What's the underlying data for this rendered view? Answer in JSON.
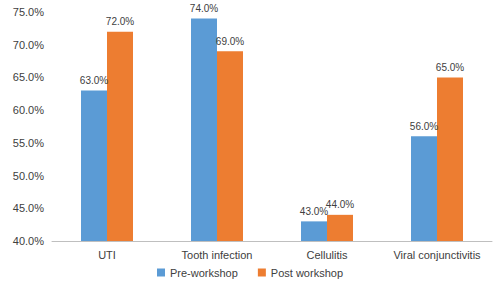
{
  "chart_data": {
    "type": "bar",
    "categories": [
      "UTI",
      "Tooth infection",
      "Cellulitis",
      "Viral conjunctivitis"
    ],
    "series": [
      {
        "name": "Pre-workshop",
        "color": "#5b9bd5",
        "values": [
          63,
          74,
          43,
          56
        ],
        "value_labels": [
          "63.0%",
          "74.0%",
          "43.0%",
          "56.0%"
        ]
      },
      {
        "name": "Post workshop",
        "color": "#ed7d31",
        "values": [
          72,
          69,
          44,
          65
        ],
        "value_labels": [
          "72.0%",
          "69.0%",
          "44.0%",
          "65.0%"
        ]
      }
    ],
    "ylim": [
      40,
      75
    ],
    "yticks": [
      {
        "value": 40,
        "label": "40.0%"
      },
      {
        "value": 45,
        "label": "45.0%"
      },
      {
        "value": 50,
        "label": "50.0%"
      },
      {
        "value": 55,
        "label": "55.0%"
      },
      {
        "value": 60,
        "label": "60.0%"
      },
      {
        "value": 65,
        "label": "65.0%"
      },
      {
        "value": 70,
        "label": "70.0%"
      },
      {
        "value": 75,
        "label": "75.0%"
      }
    ],
    "grid": false,
    "legend": "bottom",
    "data_labels": true
  }
}
